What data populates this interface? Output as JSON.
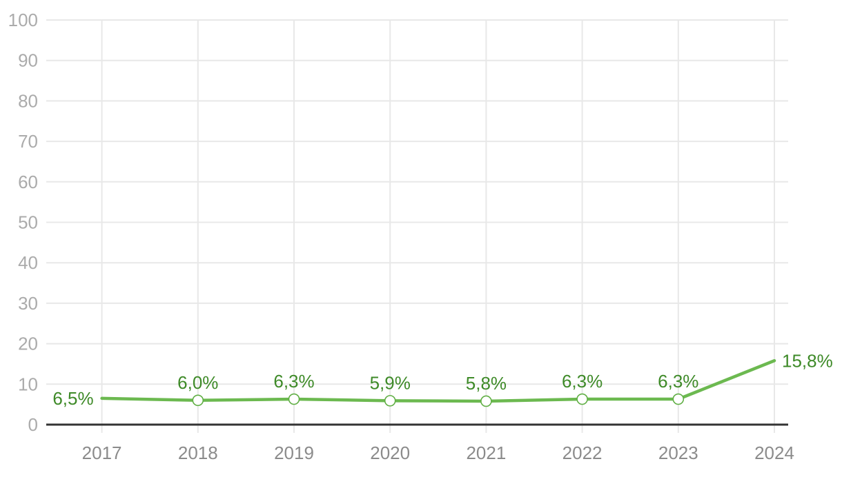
{
  "chart_data": {
    "type": "line",
    "title": "",
    "xlabel": "",
    "ylabel": "",
    "categories": [
      "2017",
      "2018",
      "2019",
      "2020",
      "2021",
      "2022",
      "2023",
      "2024"
    ],
    "series": [
      {
        "name": "percentage-series",
        "values": [
          6.5,
          6.0,
          6.3,
          5.9,
          5.8,
          6.3,
          6.3,
          15.8
        ],
        "labels": [
          "6,5%",
          "6,0%",
          "6,3%",
          "5,9%",
          "5,8%",
          "6,3%",
          "6,3%",
          "15,8%"
        ],
        "point_markers": [
          false,
          true,
          true,
          true,
          true,
          true,
          true,
          false
        ],
        "label_placement": [
          "left",
          "above",
          "above",
          "above",
          "above",
          "above",
          "above",
          "right"
        ]
      }
    ],
    "ylim": [
      0,
      100
    ],
    "y_ticks": [
      0,
      10,
      20,
      30,
      40,
      50,
      60,
      70,
      80,
      90,
      100
    ],
    "y_tick_labels": [
      "0",
      "10",
      "20",
      "30",
      "40",
      "50",
      "60",
      "70",
      "80",
      "90",
      "100"
    ],
    "grid": "on",
    "legend": "none",
    "colors": {
      "line": "#6cb950",
      "marker_stroke": "#5fae43",
      "marker_fill": "#ffffff",
      "data_label": "#3e8a28",
      "y_tick_label": "#ababab",
      "x_tick_label": "#8b8b8b",
      "gridline": "#e8e8e8",
      "axis_line": "#333333",
      "background": "#ffffff"
    }
  }
}
